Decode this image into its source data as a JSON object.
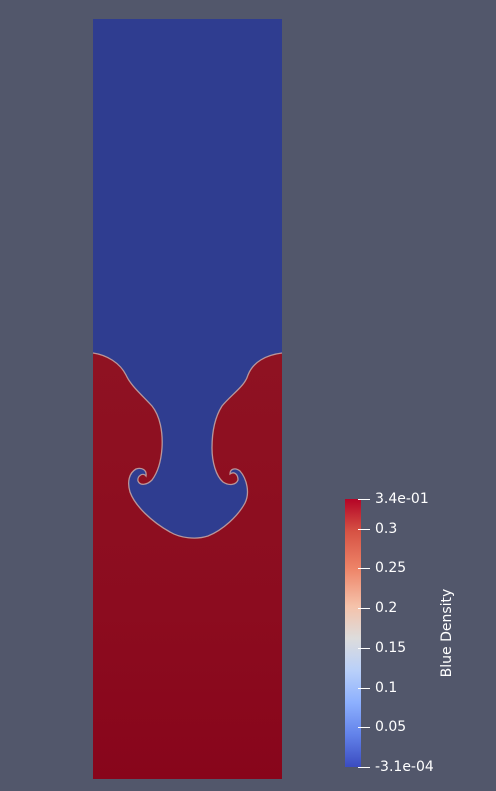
{
  "scene": {
    "background_color": "#52576b",
    "upper_fluid_color": "#2f3d90",
    "lower_fluid_color": "#8c0e20",
    "lower_fluid_bottom_color": "#88051b"
  },
  "colorbar": {
    "title": "Blue Density",
    "ticks": [
      {
        "label": "3.4e-01"
      },
      {
        "label": "0.3"
      },
      {
        "label": "0.25"
      },
      {
        "label": "0.2"
      },
      {
        "label": "0.15"
      },
      {
        "label": "0.1"
      },
      {
        "label": "0.05"
      },
      {
        "label": "-3.1e-04"
      }
    ]
  }
}
